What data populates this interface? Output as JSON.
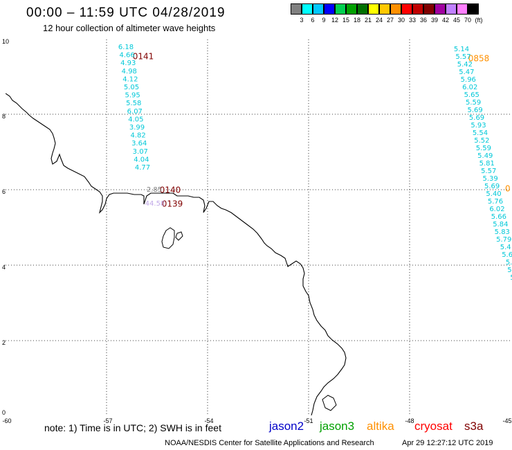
{
  "title": "00:00 – 11:59 UTC 04/28/2019",
  "subtitle": "12 hour collection of altimeter wave heights",
  "colorbar": {
    "colors": [
      "#808080",
      "#00ffff",
      "#00c8ff",
      "#0000ff",
      "#00d050",
      "#00a000",
      "#007000",
      "#ffff00",
      "#ffc800",
      "#ff9000",
      "#ff0000",
      "#c00000",
      "#800000",
      "#a000a0",
      "#c080ff",
      "#ff80ff",
      "#000000"
    ],
    "labels": [
      "3",
      "6",
      "9",
      "12",
      "15",
      "18",
      "21",
      "24",
      "27",
      "30",
      "33",
      "36",
      "39",
      "42",
      "45",
      "70",
      "(ft)"
    ]
  },
  "map": {
    "lon_range": [
      -60,
      -45
    ],
    "lat_range": [
      0,
      10
    ],
    "lon_ticks": [
      "-60",
      "-57",
      "-54",
      "-51",
      "-48",
      "-45"
    ],
    "lat_ticks": [
      "10",
      "8",
      "6",
      "4",
      "2",
      "0"
    ],
    "tracks": [
      {
        "label": "0141",
        "label_color": "#800000",
        "values": [
          "6.18",
          "4.66",
          "4.93",
          "4.98",
          "4.12",
          "5.05",
          "5.95",
          "5.58",
          "6.07",
          "4.05",
          "3.99",
          "4.82",
          "3.64",
          "3.07",
          "4.04",
          "4.77"
        ],
        "value_color": "#00c8d8"
      },
      {
        "label": "0140",
        "label_color": "#800000",
        "values": [
          "2.85"
        ],
        "value_color": "#808080"
      },
      {
        "label": "0139",
        "label_color": "#800000",
        "values": [
          "44.58"
        ],
        "value_color": "#c0a8e8"
      },
      {
        "label": "0858",
        "label_color": "#ff9000",
        "values": [
          "5.14",
          "5.57",
          "5.42",
          "5.47",
          "5.96",
          "6.02",
          "5.65",
          "5.59",
          "5.69",
          "5.69",
          "5.93",
          "5.54",
          "5.52",
          "5.59",
          "5.49",
          "5.81",
          "5.57",
          "5.39",
          "5.69",
          "5.40",
          "5.76",
          "6.02",
          "5.66",
          "5.84",
          "5.83",
          "5.79",
          "5.4",
          "5.6",
          "5.",
          "5.",
          "5"
        ],
        "value_color": "#00c8d8"
      },
      {
        "label": "0",
        "label_color": "#ff9000",
        "values": [],
        "value_color": "#00c8d8"
      }
    ]
  },
  "footnote": "note:  1) Time is in UTC;  2) SWH is in feet",
  "missions": [
    {
      "name": "jason2",
      "color": "#0000c8"
    },
    {
      "name": "jason3",
      "color": "#00a000"
    },
    {
      "name": "altika",
      "color": "#ff9000"
    },
    {
      "name": "cryosat",
      "color": "#ff0000"
    },
    {
      "name": "s3a",
      "color": "#800000"
    }
  ],
  "credit": "NOAA/NESDIS Center for Satellite Applications and Research",
  "timestamp": "Apr 29 12:27:12 UTC 2019"
}
